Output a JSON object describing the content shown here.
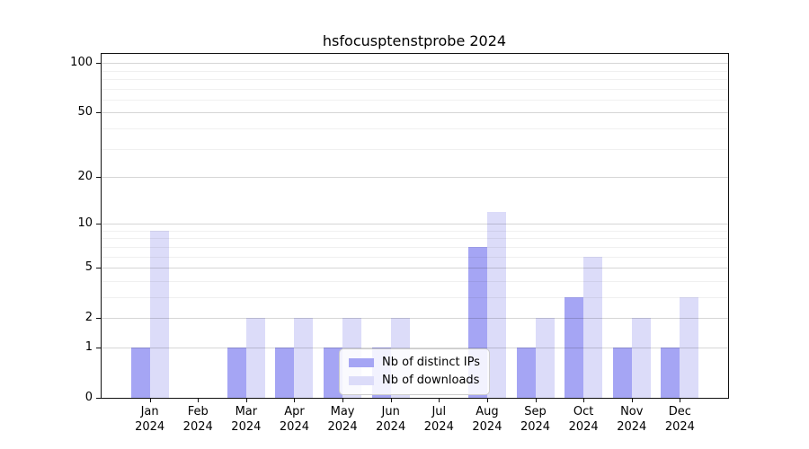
{
  "title": "hsfocusptenstprobe 2024",
  "colors": {
    "ips": "#a5a5f4",
    "downloads": "#dcdcf9",
    "spine": "#111111",
    "background": "#ffffff"
  },
  "legend": {
    "items": [
      {
        "label": "Nb of distinct IPs",
        "color_key": "ips"
      },
      {
        "label": "Nb of downloads",
        "color_key": "downloads"
      }
    ],
    "position": "lower center"
  },
  "chart_data": {
    "type": "bar",
    "title": "hsfocusptenstprobe 2024",
    "categories": [
      "Jan 2024",
      "Feb 2024",
      "Mar 2024",
      "Apr 2024",
      "May 2024",
      "Jun 2024",
      "Jul 2024",
      "Aug 2024",
      "Sep 2024",
      "Oct 2024",
      "Nov 2024",
      "Dec 2024"
    ],
    "series": [
      {
        "name": "Nb of distinct IPs",
        "color_key": "ips",
        "values": [
          1,
          0,
          1,
          1,
          1,
          1,
          0,
          7,
          1,
          3,
          1,
          1
        ]
      },
      {
        "name": "Nb of downloads",
        "color_key": "downloads",
        "values": [
          9,
          0,
          2,
          2,
          2,
          2,
          0,
          12,
          2,
          6,
          2,
          3
        ]
      }
    ],
    "xlabel": "",
    "ylabel": "",
    "yscale": "log1p",
    "ylim": [
      0,
      113.5
    ],
    "yticks": [
      0,
      1,
      2,
      5,
      10,
      20,
      50,
      100
    ],
    "minor_gridlines": [
      3,
      4,
      6,
      7,
      8,
      9,
      30,
      40,
      60,
      70,
      80,
      90
    ],
    "grid": true,
    "legend_position": "lower center"
  }
}
